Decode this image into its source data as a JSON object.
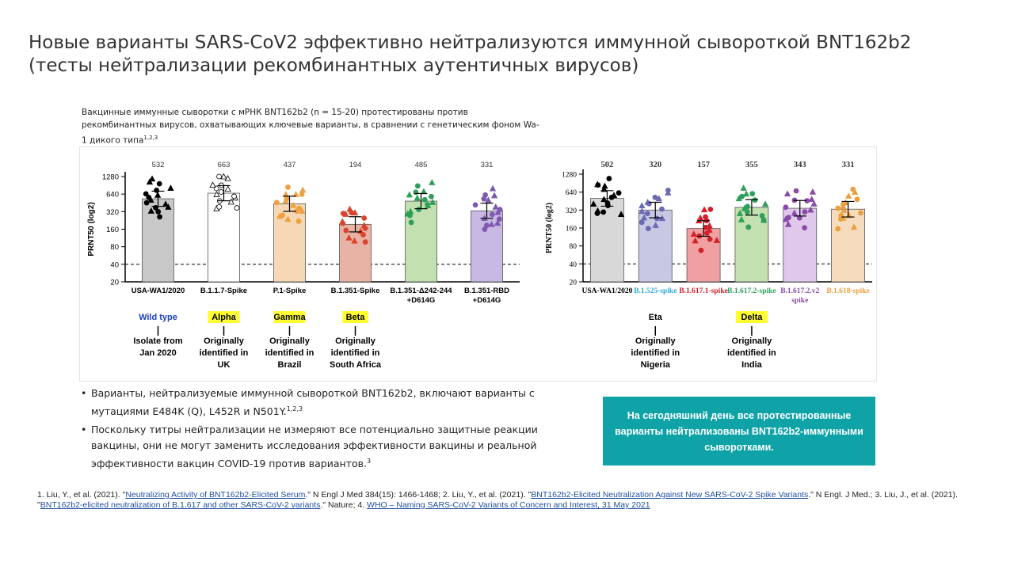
{
  "title": "Новые варианты SARS-CoV2 эффективно нейтрализуются иммунной сывороткой BNT162b2 (тесты нейтрализации рекомбинантных аутентичных вирусов)",
  "subtitle": {
    "text": "Вакцинные иммунные сыворотки с мРНК BNT162b2 (n = 15-20) протестированы против рекомбинантных вирусов, охватывающих ключевые варианты, в сравнении с генетическим фоном Wa-1 дикого типа",
    "sup": "1,2,3"
  },
  "chart_data": [
    {
      "type": "bar",
      "ylabel": "PRNT50 (log2)",
      "yscale": "log2",
      "ylim": [
        20,
        1280
      ],
      "yticks": [
        20,
        40,
        80,
        160,
        320,
        640,
        1280
      ],
      "threshold": 40,
      "categories": [
        "USA-WA1/2020",
        "B.1.1.7-Spike",
        "P.1-Spike",
        "B.1.351-Spike",
        "B.1.351-Δ242-244 +D614G",
        "B.1.351-RBD +D614G"
      ],
      "values": [
        532,
        663,
        437,
        194,
        485,
        331
      ],
      "value_labels": [
        "532",
        "663",
        "437",
        "194",
        "485",
        "331"
      ],
      "colors": [
        "#000000",
        "#000000",
        "#f0a040",
        "#d9442e",
        "#2e9e5a",
        "#7e5ab0"
      ],
      "fills": [
        "#c8c8c8",
        "#ffffff",
        "#f6d8b4",
        "#e8b2a4",
        "#c2e0b0",
        "#c8b8e4"
      ],
      "variant_names": [
        "Wild type",
        "Alpha",
        "Gamma",
        "Beta",
        "",
        ""
      ],
      "variant_highlight": [
        false,
        true,
        true,
        true,
        false,
        false
      ],
      "origins": [
        "Isolate from Jan 2020",
        "Originally identified in UK",
        "Originally identified in Brazil",
        "Originally identified in South Africa",
        "",
        ""
      ]
    },
    {
      "type": "bar",
      "ylabel": "PRNT50 (log2)",
      "yscale": "log2",
      "ylim": [
        20,
        1280
      ],
      "yticks": [
        20,
        40,
        80,
        160,
        320,
        640,
        1280
      ],
      "threshold": 40,
      "categories": [
        "USA-WA1/2020",
        "B.1.525-spike",
        "B.1.617.1-spike",
        "B.1.617.2-spike",
        "B.1.617.2.v2 spike",
        "B.1.618-spike"
      ],
      "values": [
        502,
        320,
        157,
        355,
        343,
        331
      ],
      "value_labels": [
        "502",
        "320",
        "157",
        "355",
        "343",
        "331"
      ],
      "colors": [
        "#000000",
        "#6a6ab4",
        "#d4202a",
        "#2e9e5a",
        "#8a4aa8",
        "#e8a040"
      ],
      "fills": [
        "#d8d8d8",
        "#c8c8e4",
        "#f0a0a0",
        "#c2e0b0",
        "#e0c8ec",
        "#f6dcbc"
      ],
      "label_colors": [
        "#000000",
        "#2aa8d8",
        "#d4202a",
        "#2e9e5a",
        "#8a4aa8",
        "#e8a040"
      ],
      "variant_names": [
        "",
        "Eta",
        "",
        "Delta",
        "",
        ""
      ],
      "variant_highlight": [
        false,
        false,
        false,
        true,
        false,
        false
      ],
      "origins": [
        "",
        "Originally identified in Nigeria",
        "",
        "Originally identified in India",
        "",
        ""
      ]
    }
  ],
  "bullets": [
    {
      "text": "Варианты, нейтрализуемые иммунной сывороткой BNT162b2, включают варианты с мутациями E484K (Q), L452R и N501Y.",
      "sup": "1,2,3"
    },
    {
      "text": "Поскольку титры нейтрализации не измеряют все потенциально защитные реакции вакцины, они не могут заменить исследования эффективности вакцины и реальной эффективности вакцин COVID-19 против вариантов.",
      "sup": "3"
    }
  ],
  "callout": "На сегодняшний день все протестированные варианты нейтрализованы BNT162b2-иммунными сыворотками.",
  "refs": {
    "r1_pre": "1. Liu, Y., et al. (2021). \"",
    "r1_link": "Neutralizing Activity of BNT162b2-Elicited Serum",
    "r1_post": ".\" N Engl J Med 384(15): 1466-1468; 2. Liu, Y., et al. (2021). \"",
    "r2_link": "BNT162b2-Elicited Neutralization Against New SARS-CoV-2 Spike Variants",
    "r2_post": ".\" N Engl. J Med.; 3. Liu, J., et al. (2021). \"",
    "r3_link": "BNT162b2-elicited neutralization of B.1.617 and other SARS-CoV-2 variants",
    "r3_post": ".\" Nature; 4. ",
    "r4_link": "WHO – Naming SARS-CoV-2 Variants of Concern and Interest, 31 May 2021"
  }
}
